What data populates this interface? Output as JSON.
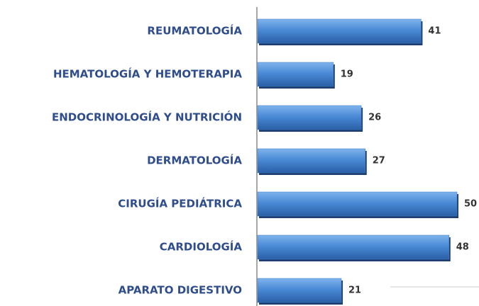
{
  "chart_data": {
    "type": "bar",
    "orientation": "horizontal",
    "categories": [
      "REUMATOLOGÍA",
      "HEMATOLOGÍA Y HEMOTERAPIA",
      "ENDOCRINOLOGÍA Y NUTRICIÓN",
      "DERMATOLOGÍA",
      "CIRUGÍA PEDIÁTRICA",
      "CARDIOLOGÍA",
      "APARATO DIGESTIVO"
    ],
    "values": [
      41,
      19,
      26,
      27,
      50,
      48,
      21
    ],
    "color": "#3f7fc8"
  }
}
